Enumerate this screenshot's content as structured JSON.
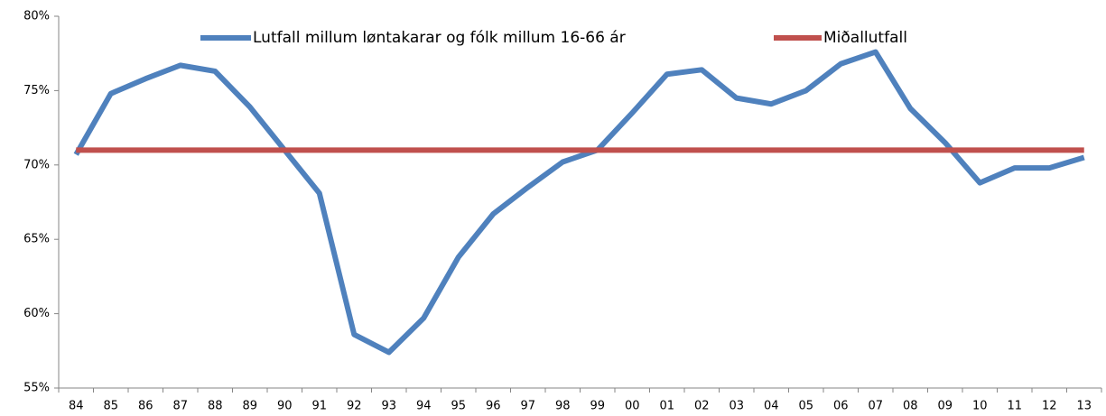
{
  "chart_data": {
    "type": "line",
    "categories": [
      "84",
      "85",
      "86",
      "87",
      "88",
      "89",
      "90",
      "91",
      "92",
      "93",
      "94",
      "95",
      "96",
      "97",
      "98",
      "99",
      "00",
      "01",
      "02",
      "03",
      "04",
      "05",
      "06",
      "07",
      "08",
      "09",
      "10",
      "11",
      "12",
      "13"
    ],
    "series": [
      {
        "name": "Lutfall millum løntakarar og fólk millum 16-66 ár",
        "color": "#4f81bd",
        "values": [
          70.7,
          74.8,
          75.8,
          76.7,
          76.3,
          73.9,
          71.0,
          68.1,
          58.6,
          57.4,
          59.7,
          63.8,
          66.7,
          68.5,
          70.2,
          71.0,
          73.5,
          76.1,
          76.4,
          74.5,
          74.1,
          75.0,
          76.8,
          77.6,
          73.8,
          71.5,
          68.8,
          69.8,
          69.8,
          70.5
        ]
      },
      {
        "name": "Miðallutfall",
        "color": "#c0504d",
        "values": [
          71.0,
          71.0,
          71.0,
          71.0,
          71.0,
          71.0,
          71.0,
          71.0,
          71.0,
          71.0,
          71.0,
          71.0,
          71.0,
          71.0,
          71.0,
          71.0,
          71.0,
          71.0,
          71.0,
          71.0,
          71.0,
          71.0,
          71.0,
          71.0,
          71.0,
          71.0,
          71.0,
          71.0,
          71.0,
          71.0
        ]
      }
    ],
    "ylim": [
      55,
      80
    ],
    "yticks": [
      {
        "value": 55,
        "label": "55%"
      },
      {
        "value": 60,
        "label": "60%"
      },
      {
        "value": 65,
        "label": "65%"
      },
      {
        "value": 70,
        "label": "70%"
      },
      {
        "value": 75,
        "label": "75%"
      },
      {
        "value": 80,
        "label": "80%"
      }
    ],
    "legend": "top"
  }
}
